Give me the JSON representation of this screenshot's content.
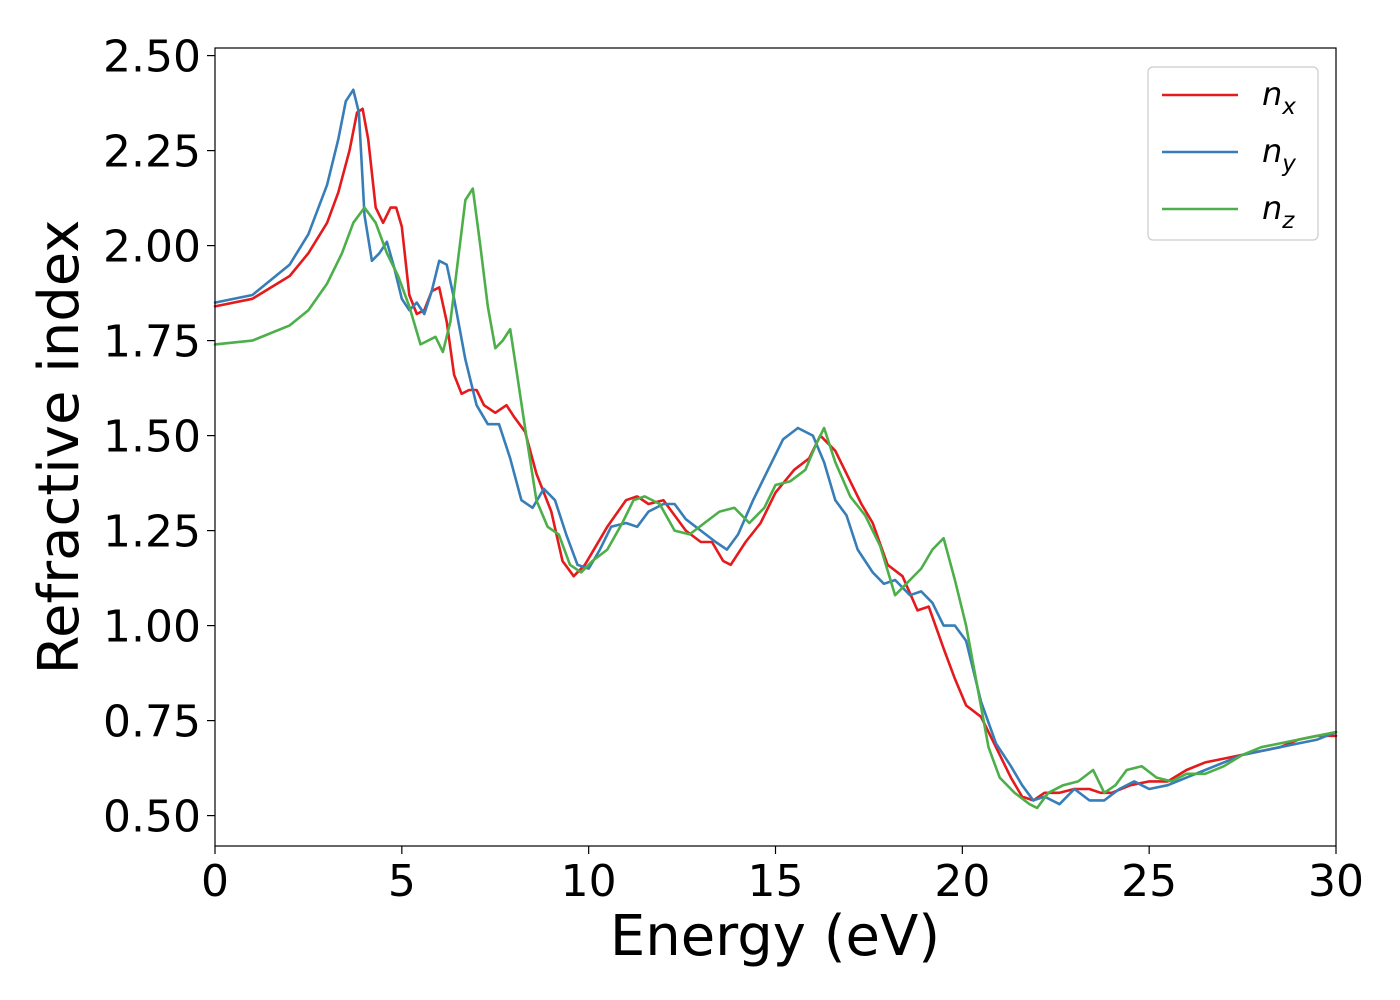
{
  "chart_data": {
    "type": "line",
    "title": "",
    "xlabel": "Energy (eV)",
    "ylabel": "Refractive index",
    "xlim": [
      0,
      30
    ],
    "ylim": [
      0.42,
      2.52
    ],
    "xticks": [
      0,
      5,
      10,
      15,
      20,
      25,
      30
    ],
    "xtick_labels": [
      "0",
      "5",
      "10",
      "15",
      "20",
      "25",
      "30"
    ],
    "yticks": [
      0.5,
      0.75,
      1.0,
      1.25,
      1.5,
      1.75,
      2.0,
      2.25,
      2.5
    ],
    "ytick_labels": [
      "0.50",
      "0.75",
      "1.00",
      "1.25",
      "1.50",
      "1.75",
      "2.00",
      "2.25",
      "2.50"
    ],
    "grid": false,
    "legend_position": "top-right",
    "series": [
      {
        "name": "n_x",
        "label_base": "n",
        "label_sub": "x",
        "color": "#e41a1c",
        "x": [
          0,
          1,
          2,
          2.5,
          3,
          3.3,
          3.6,
          3.8,
          3.95,
          4.1,
          4.3,
          4.5,
          4.7,
          4.85,
          5.0,
          5.2,
          5.4,
          5.6,
          5.8,
          6.0,
          6.2,
          6.4,
          6.6,
          6.8,
          7.0,
          7.2,
          7.5,
          7.8,
          8.0,
          8.3,
          8.6,
          9.0,
          9.3,
          9.6,
          9.9,
          10.2,
          10.5,
          11.0,
          11.3,
          11.6,
          12.0,
          12.3,
          12.6,
          13.0,
          13.3,
          13.6,
          13.8,
          14.2,
          14.6,
          15.0,
          15.5,
          15.9,
          16.2,
          16.6,
          17.0,
          17.3,
          17.6,
          18.0,
          18.4,
          18.8,
          19.1,
          19.5,
          19.8,
          20.1,
          20.5,
          20.9,
          21.3,
          21.6,
          21.9,
          22.2,
          22.6,
          23.0,
          23.4,
          23.7,
          24.0,
          24.5,
          25.0,
          25.5,
          26.0,
          26.5,
          27.0,
          27.5,
          28.0,
          28.5,
          29.0,
          29.5,
          30.0
        ],
        "y": [
          1.84,
          1.86,
          1.92,
          1.98,
          2.06,
          2.14,
          2.25,
          2.35,
          2.36,
          2.28,
          2.1,
          2.06,
          2.1,
          2.1,
          2.05,
          1.87,
          1.82,
          1.83,
          1.88,
          1.89,
          1.8,
          1.66,
          1.61,
          1.62,
          1.62,
          1.58,
          1.56,
          1.58,
          1.55,
          1.51,
          1.4,
          1.3,
          1.17,
          1.13,
          1.16,
          1.21,
          1.26,
          1.33,
          1.34,
          1.32,
          1.33,
          1.29,
          1.25,
          1.22,
          1.22,
          1.17,
          1.16,
          1.22,
          1.27,
          1.35,
          1.41,
          1.44,
          1.5,
          1.46,
          1.38,
          1.32,
          1.27,
          1.16,
          1.13,
          1.04,
          1.05,
          0.94,
          0.86,
          0.79,
          0.76,
          0.68,
          0.6,
          0.55,
          0.54,
          0.56,
          0.56,
          0.57,
          0.57,
          0.56,
          0.56,
          0.58,
          0.59,
          0.59,
          0.62,
          0.64,
          0.65,
          0.66,
          0.67,
          0.68,
          0.7,
          0.71,
          0.71
        ]
      },
      {
        "name": "n_y",
        "label_base": "n",
        "label_sub": "y",
        "color": "#377eb8",
        "x": [
          0,
          1,
          2,
          2.5,
          3,
          3.3,
          3.5,
          3.7,
          3.85,
          4.0,
          4.2,
          4.4,
          4.6,
          4.8,
          5.0,
          5.2,
          5.4,
          5.6,
          5.8,
          6.0,
          6.2,
          6.4,
          6.7,
          7.0,
          7.3,
          7.6,
          7.9,
          8.2,
          8.5,
          8.8,
          9.1,
          9.4,
          9.7,
          10.0,
          10.3,
          10.6,
          11.0,
          11.3,
          11.6,
          12.0,
          12.3,
          12.6,
          13.0,
          13.4,
          13.7,
          14.0,
          14.4,
          14.8,
          15.2,
          15.6,
          16.0,
          16.3,
          16.6,
          16.9,
          17.2,
          17.6,
          17.9,
          18.2,
          18.6,
          18.9,
          19.2,
          19.5,
          19.8,
          20.1,
          20.5,
          20.9,
          21.3,
          21.6,
          21.9,
          22.2,
          22.6,
          23.0,
          23.4,
          23.8,
          24.2,
          24.6,
          25.0,
          25.5,
          26.0,
          26.5,
          27.0,
          27.5,
          28.0,
          28.5,
          29.0,
          29.5,
          30.0
        ],
        "y": [
          1.85,
          1.87,
          1.95,
          2.03,
          2.16,
          2.28,
          2.38,
          2.41,
          2.35,
          2.08,
          1.96,
          1.98,
          2.01,
          1.94,
          1.86,
          1.83,
          1.85,
          1.82,
          1.88,
          1.96,
          1.95,
          1.86,
          1.7,
          1.58,
          1.53,
          1.53,
          1.44,
          1.33,
          1.31,
          1.36,
          1.33,
          1.24,
          1.16,
          1.15,
          1.2,
          1.26,
          1.27,
          1.26,
          1.3,
          1.32,
          1.32,
          1.28,
          1.25,
          1.22,
          1.2,
          1.24,
          1.33,
          1.41,
          1.49,
          1.52,
          1.5,
          1.43,
          1.33,
          1.29,
          1.2,
          1.14,
          1.11,
          1.12,
          1.08,
          1.09,
          1.06,
          1.0,
          1.0,
          0.96,
          0.8,
          0.69,
          0.63,
          0.58,
          0.54,
          0.55,
          0.53,
          0.57,
          0.54,
          0.54,
          0.57,
          0.59,
          0.57,
          0.58,
          0.6,
          0.62,
          0.64,
          0.66,
          0.67,
          0.68,
          0.69,
          0.7,
          0.72
        ]
      },
      {
        "name": "n_z",
        "label_base": "n",
        "label_sub": "z",
        "color": "#4daf4a",
        "x": [
          0,
          1,
          2,
          2.5,
          3,
          3.4,
          3.7,
          4.0,
          4.3,
          4.6,
          4.9,
          5.2,
          5.5,
          5.7,
          5.9,
          6.1,
          6.3,
          6.5,
          6.7,
          6.9,
          7.1,
          7.3,
          7.5,
          7.7,
          7.9,
          8.1,
          8.3,
          8.6,
          8.9,
          9.2,
          9.5,
          9.8,
          10.1,
          10.5,
          10.9,
          11.2,
          11.5,
          11.9,
          12.3,
          12.7,
          13.1,
          13.5,
          13.9,
          14.3,
          14.7,
          15.0,
          15.4,
          15.8,
          16.1,
          16.3,
          16.6,
          17.0,
          17.4,
          17.8,
          18.2,
          18.6,
          18.9,
          19.2,
          19.5,
          19.8,
          20.1,
          20.4,
          20.7,
          21.0,
          21.4,
          21.8,
          22.0,
          22.3,
          22.7,
          23.1,
          23.5,
          23.8,
          24.1,
          24.4,
          24.8,
          25.2,
          25.6,
          26.0,
          26.5,
          27.0,
          27.5,
          28.0,
          28.5,
          29.0,
          29.5,
          30.0
        ],
        "y": [
          1.74,
          1.75,
          1.79,
          1.83,
          1.9,
          1.98,
          2.06,
          2.1,
          2.06,
          1.98,
          1.92,
          1.84,
          1.74,
          1.75,
          1.76,
          1.72,
          1.8,
          1.96,
          2.12,
          2.15,
          2.0,
          1.84,
          1.73,
          1.75,
          1.78,
          1.65,
          1.52,
          1.33,
          1.26,
          1.24,
          1.16,
          1.14,
          1.17,
          1.2,
          1.27,
          1.33,
          1.34,
          1.32,
          1.25,
          1.24,
          1.27,
          1.3,
          1.31,
          1.27,
          1.31,
          1.37,
          1.38,
          1.41,
          1.48,
          1.52,
          1.43,
          1.34,
          1.29,
          1.21,
          1.08,
          1.12,
          1.15,
          1.2,
          1.23,
          1.12,
          1.0,
          0.84,
          0.68,
          0.6,
          0.56,
          0.53,
          0.52,
          0.56,
          0.58,
          0.59,
          0.62,
          0.56,
          0.58,
          0.62,
          0.63,
          0.6,
          0.59,
          0.61,
          0.61,
          0.63,
          0.66,
          0.68,
          0.69,
          0.7,
          0.71,
          0.72
        ]
      }
    ]
  }
}
